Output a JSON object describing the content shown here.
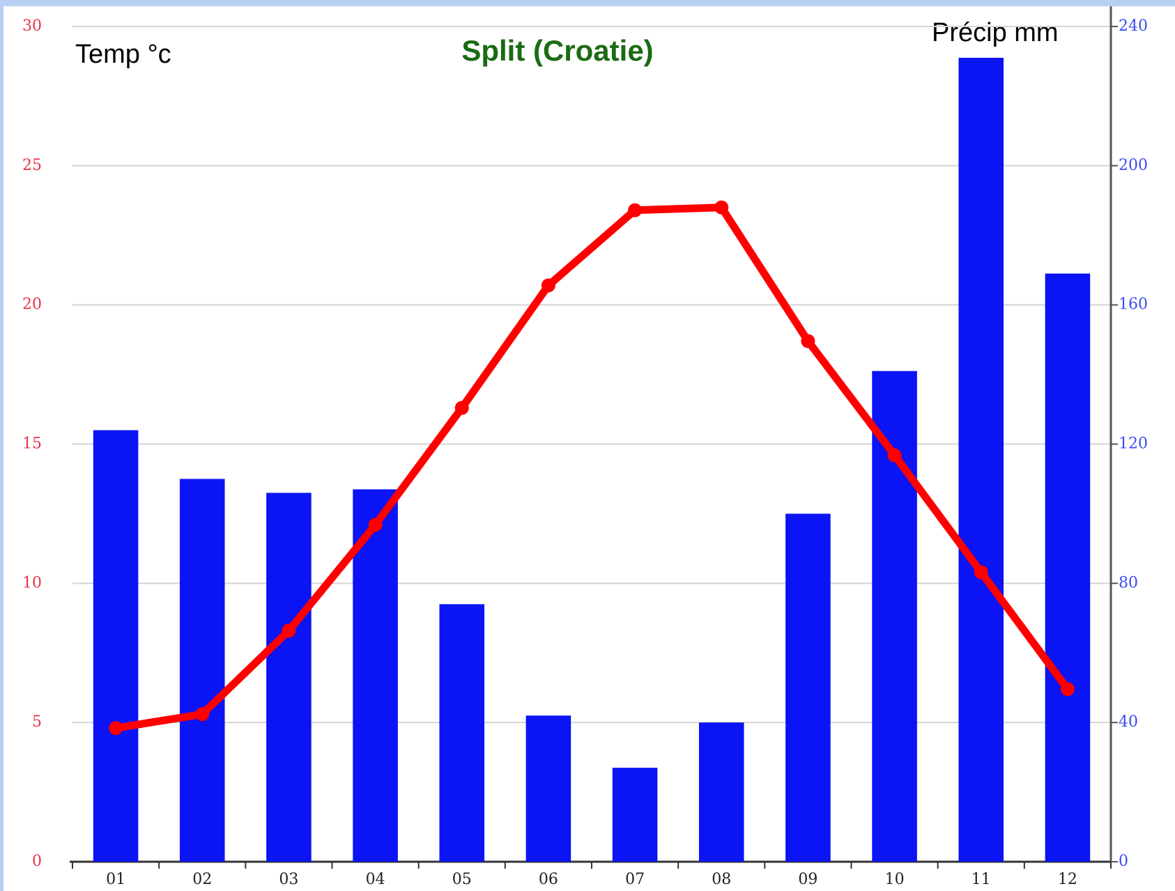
{
  "chart_data": {
    "type": "bar-line",
    "title": "Split (Croatie)",
    "y_label": "Temp °c",
    "y2_label": "Précip mm",
    "categories": [
      "01",
      "02",
      "03",
      "04",
      "05",
      "06",
      "07",
      "08",
      "09",
      "10",
      "11",
      "12"
    ],
    "series": [
      {
        "name": "Précip",
        "type": "bar",
        "axis": "y2",
        "color": "#0a14f5",
        "values": [
          124,
          110,
          106,
          107,
          74,
          42,
          27,
          40,
          100,
          141,
          231,
          169
        ]
      },
      {
        "name": "Temp",
        "type": "line",
        "axis": "y",
        "color": "#ff0000",
        "values": [
          4.8,
          5.3,
          8.3,
          12.1,
          16.3,
          20.7,
          23.4,
          23.5,
          18.7,
          14.6,
          10.4,
          6.2
        ]
      }
    ],
    "ylim": [
      0,
      30
    ],
    "yticks": [
      0,
      5,
      10,
      15,
      20,
      25,
      30
    ],
    "ytick_color": "#e8334a",
    "y2lim": [
      0,
      240
    ],
    "y2ticks": [
      0,
      40,
      80,
      120,
      160,
      200,
      240
    ],
    "y2tick_color": "#3a4cf0",
    "grid": true
  }
}
